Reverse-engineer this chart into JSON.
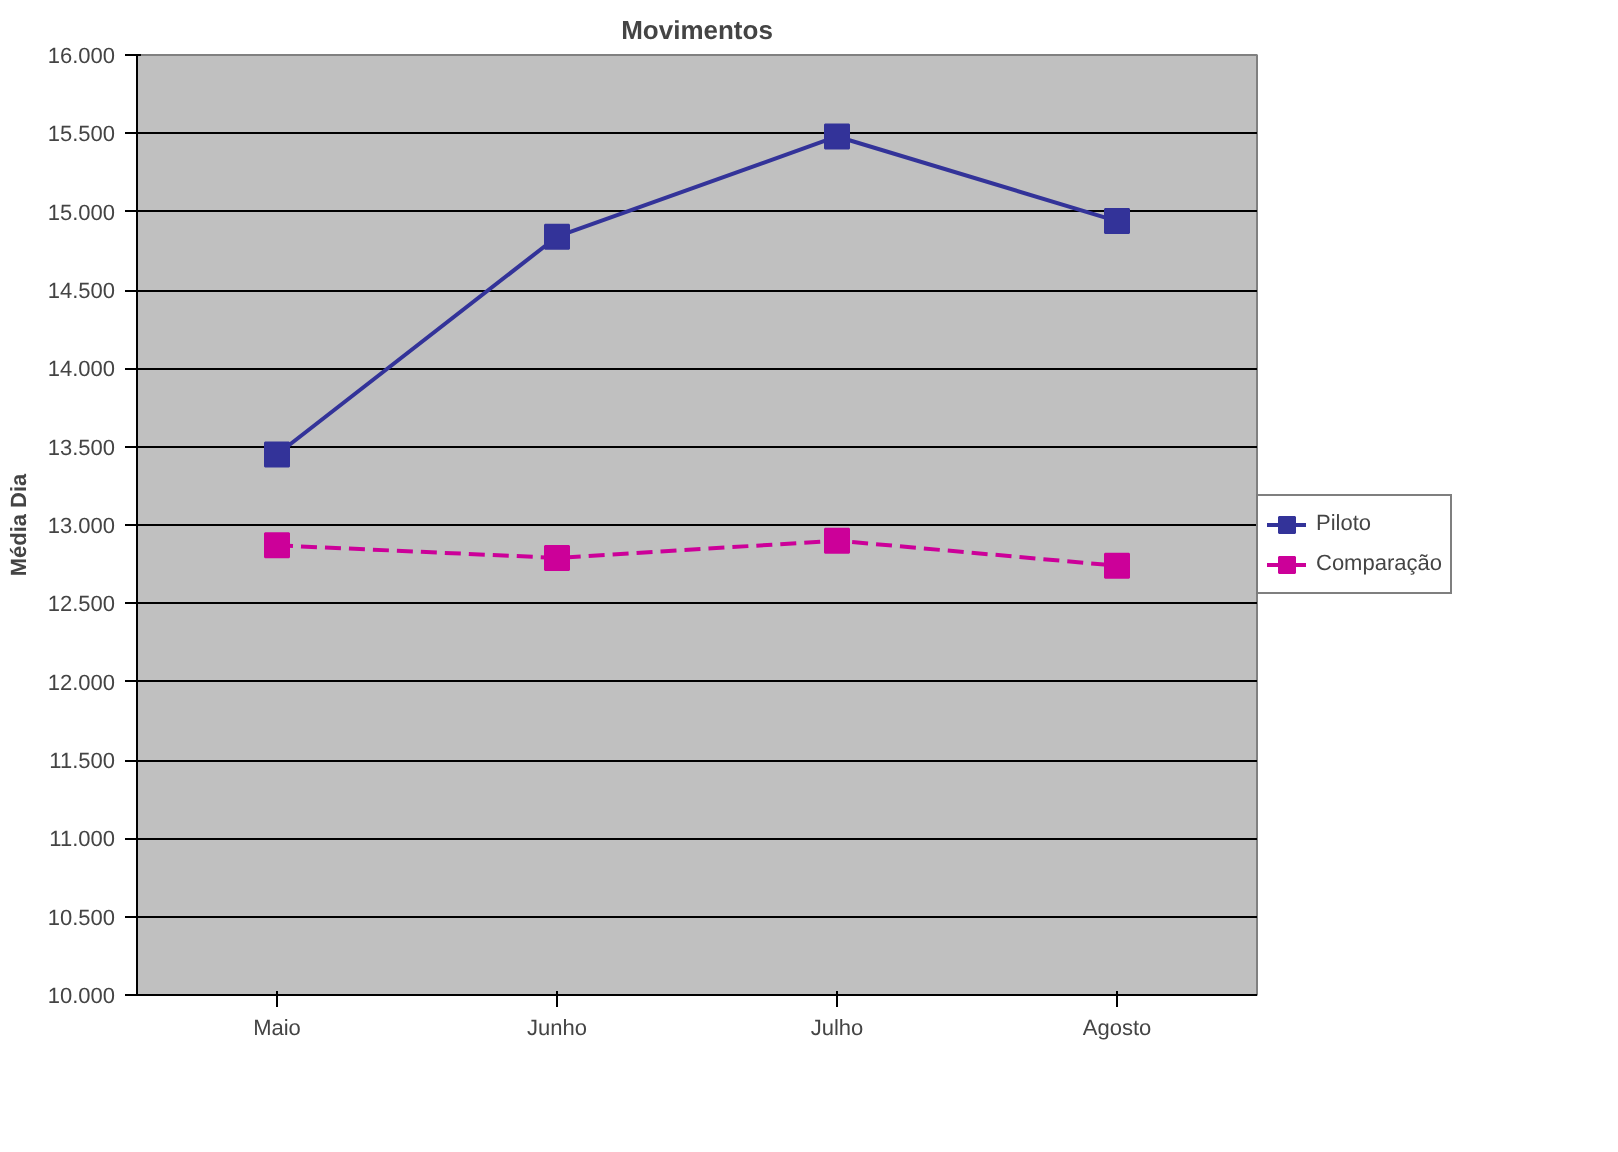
{
  "chart_data": {
    "type": "line",
    "title": "Movimentos",
    "ylabel": "Média Dia",
    "categories": [
      "Maio",
      "Junho",
      "Julho",
      "Agosto"
    ],
    "series": [
      {
        "name": "Piloto",
        "color": "#333399",
        "values": [
          13450,
          14840,
          15480,
          14940
        ],
        "line_style": "solid"
      },
      {
        "name": "Comparação",
        "color": "#cc0099",
        "values": [
          12870,
          12790,
          12900,
          12740
        ],
        "line_style": "dashed"
      }
    ],
    "ylim": [
      10000,
      16000
    ],
    "yticks": [
      {
        "value": 10000,
        "label": "10.000"
      },
      {
        "value": 10500,
        "label": "10.500"
      },
      {
        "value": 11000,
        "label": "11.000"
      },
      {
        "value": 11500,
        "label": "11.500"
      },
      {
        "value": 12000,
        "label": "12.000"
      },
      {
        "value": 12500,
        "label": "12.500"
      },
      {
        "value": 13000,
        "label": "13.000"
      },
      {
        "value": 13500,
        "label": "13.500"
      },
      {
        "value": 14000,
        "label": "14.000"
      },
      {
        "value": 14500,
        "label": "14.500"
      },
      {
        "value": 15000,
        "label": "15.000"
      },
      {
        "value": 15500,
        "label": "15.500"
      },
      {
        "value": 16000,
        "label": "16.000"
      }
    ],
    "grid": "y",
    "legend": "right",
    "marker": "square"
  }
}
